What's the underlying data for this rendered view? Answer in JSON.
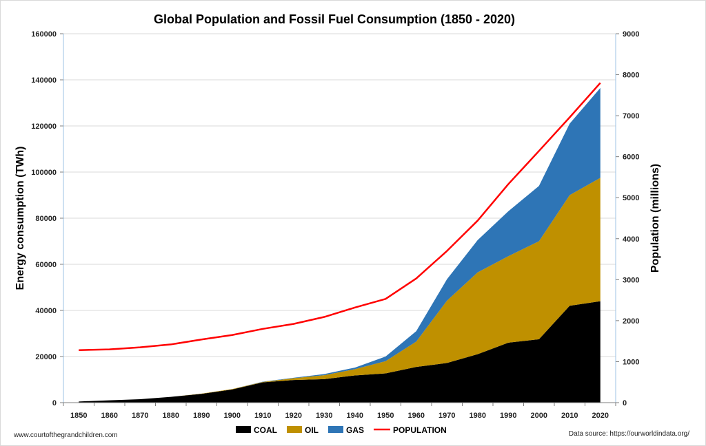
{
  "chart_data": {
    "type": "area",
    "stacked": true,
    "title": "Global Population and Fossil Fuel Consumption (1850 - 2020)",
    "x": [
      1850,
      1860,
      1870,
      1880,
      1890,
      1900,
      1910,
      1920,
      1930,
      1940,
      1950,
      1960,
      1970,
      1980,
      1990,
      2000,
      2010,
      2020
    ],
    "y_left": {
      "label": "Energy consumption (TWh)",
      "ylim": [
        0,
        160000
      ],
      "ticks": [
        0,
        20000,
        40000,
        60000,
        80000,
        100000,
        120000,
        140000,
        160000
      ]
    },
    "y_right": {
      "label": "Population (millions)",
      "ylim": [
        0,
        9000
      ],
      "ticks": [
        0,
        1000,
        2000,
        3000,
        4000,
        5000,
        6000,
        7000,
        8000,
        9000
      ]
    },
    "series": [
      {
        "name": "COAL",
        "type": "area",
        "axis": "left",
        "color": "#000000",
        "values": [
          500,
          1000,
          1500,
          2500,
          3800,
          5700,
          8800,
          9800,
          10200,
          11800,
          12700,
          15500,
          17200,
          21000,
          26000,
          27500,
          42000,
          44000
        ]
      },
      {
        "name": "OIL",
        "type": "area",
        "axis": "left",
        "color": "#bf9000",
        "values": [
          0,
          0,
          0,
          0,
          100,
          200,
          200,
          800,
          1700,
          2700,
          5300,
          11000,
          27000,
          35500,
          37500,
          42500,
          48000,
          53500
        ]
      },
      {
        "name": "GAS",
        "type": "area",
        "axis": "left",
        "color": "#2e75b6",
        "values": [
          0,
          0,
          0,
          0,
          0,
          0,
          100,
          200,
          500,
          700,
          2000,
          4500,
          9300,
          14000,
          19500,
          24000,
          31000,
          39000
        ]
      },
      {
        "name": "POPULATION",
        "type": "line",
        "axis": "right",
        "color": "#ff0000",
        "values": [
          1280,
          1300,
          1350,
          1420,
          1540,
          1650,
          1800,
          1920,
          2090,
          2320,
          2530,
          3030,
          3700,
          4440,
          5330,
          6140,
          6960,
          7800
        ]
      }
    ],
    "legend_position": "bottom",
    "grid": true
  },
  "footer": {
    "left": "www.courtofthegrandchildren.com",
    "right": "Data source: https://ourworldindata.org/"
  }
}
